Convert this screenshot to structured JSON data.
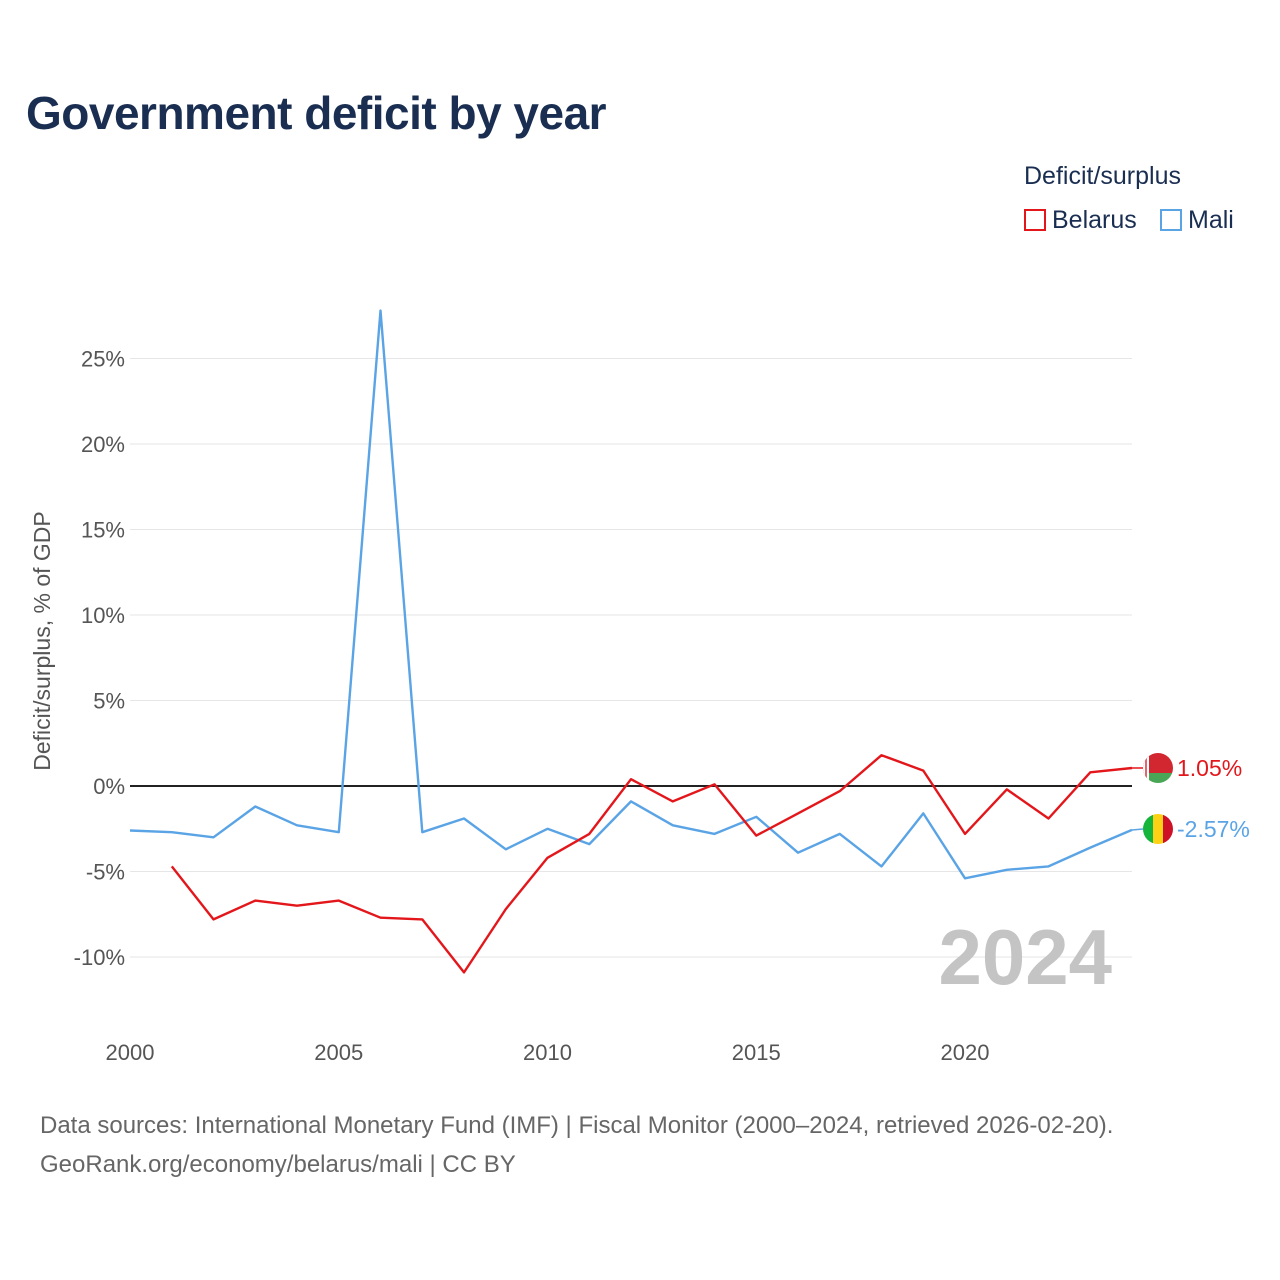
{
  "title": "Government deficit by year",
  "legend": {
    "title": "Deficit/surplus",
    "items": [
      {
        "label": "Belarus",
        "color": "#e3171b"
      },
      {
        "label": "Mali",
        "color": "#5aa4e6"
      }
    ]
  },
  "source": {
    "line1": "Data sources: International Monetary Fund (IMF) | Fiscal Monitor (2000–2024, retrieved 2026-02-20).",
    "line2": "GeoRank.org/economy/belarus/mali | CC BY"
  },
  "chart_data": {
    "type": "line",
    "title": "Government deficit by year",
    "xlabel": "",
    "ylabel": "Deficit/surplus, % of GDP",
    "xlim": [
      2000,
      2024
    ],
    "ylim": [
      -13,
      29
    ],
    "xticks": [
      2000,
      2005,
      2010,
      2015,
      2020
    ],
    "yticks": [
      -10,
      -5,
      0,
      5,
      10,
      15,
      20,
      25
    ],
    "ytick_labels": [
      "-10%",
      "-5%",
      "0%",
      "5%",
      "10%",
      "15%",
      "20%",
      "25%"
    ],
    "zero_line": true,
    "year_watermark": "2024",
    "series": [
      {
        "name": "Belarus",
        "color": "#e3171b",
        "end_label": "1.05%",
        "x": [
          2001,
          2002,
          2003,
          2004,
          2005,
          2006,
          2007,
          2008,
          2009,
          2010,
          2011,
          2012,
          2013,
          2014,
          2015,
          2016,
          2017,
          2018,
          2019,
          2020,
          2021,
          2022,
          2023,
          2024
        ],
        "values": [
          -4.7,
          -7.8,
          -6.7,
          -7.0,
          -6.7,
          -7.7,
          -7.8,
          -10.9,
          -7.2,
          -4.2,
          -2.8,
          0.4,
          -0.9,
          0.1,
          -2.9,
          -1.6,
          -0.3,
          1.8,
          0.9,
          -2.8,
          -0.2,
          -1.9,
          0.8,
          1.05
        ]
      },
      {
        "name": "Mali",
        "color": "#5aa4e6",
        "end_label": "-2.57%",
        "x": [
          2000,
          2001,
          2002,
          2003,
          2004,
          2005,
          2006,
          2007,
          2008,
          2009,
          2010,
          2011,
          2012,
          2013,
          2014,
          2015,
          2016,
          2017,
          2018,
          2019,
          2020,
          2021,
          2022,
          2023,
          2024
        ],
        "values": [
          -2.6,
          -2.7,
          -3.0,
          -1.2,
          -2.3,
          -2.7,
          27.8,
          -2.7,
          -1.9,
          -3.7,
          -2.5,
          -3.4,
          -0.9,
          -2.3,
          -2.8,
          -1.8,
          -3.9,
          -2.8,
          -4.7,
          -1.6,
          -5.4,
          -4.9,
          -4.7,
          -3.6,
          -2.57
        ]
      }
    ]
  }
}
